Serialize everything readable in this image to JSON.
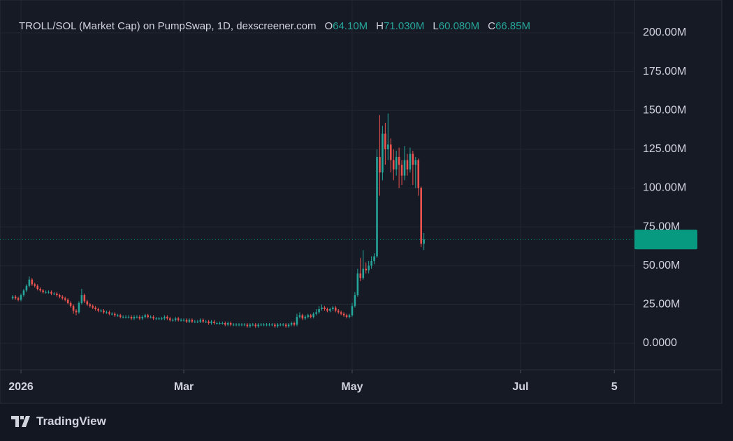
{
  "chart_data": {
    "type": "candlestick",
    "title": "TROLL/SOL (Market Cap) on PumpSwap, 1D, dexscreener.com",
    "legend_keys": [
      "O",
      "H",
      "L",
      "C"
    ],
    "legend_values": [
      "64.10M",
      "71.030M",
      "60.080M",
      "66.85M"
    ],
    "brand": "TradingView",
    "up_color": "#26a69a",
    "down_color": "#ef5350",
    "last_price_color": "#089981",
    "grid": true,
    "x": [
      -3,
      -2,
      -1,
      0,
      1,
      2,
      3,
      4,
      5,
      6,
      7,
      8,
      9,
      10,
      11,
      12,
      13,
      14,
      15,
      16,
      17,
      18,
      19,
      20,
      21,
      22,
      23,
      24,
      25,
      26,
      27,
      28,
      29,
      30,
      31,
      32,
      33,
      34,
      35,
      36,
      37,
      38,
      39,
      40,
      41,
      42,
      43,
      44,
      45,
      46,
      47,
      48,
      49,
      50,
      51,
      52,
      53,
      54,
      55,
      56,
      57,
      58,
      59,
      60,
      61,
      62,
      63,
      64,
      65,
      66,
      67,
      68,
      69,
      70,
      71,
      72,
      73,
      74,
      75,
      76,
      77,
      78,
      79,
      80,
      81,
      82,
      83,
      84,
      85,
      86,
      87,
      88,
      89,
      90,
      91,
      92,
      93,
      94,
      95,
      96,
      97,
      98,
      99,
      100,
      101,
      102,
      103,
      104,
      105,
      106,
      107,
      108,
      109,
      110,
      111,
      112,
      113,
      114,
      115,
      116,
      117,
      118,
      119,
      120,
      121,
      122,
      123,
      124,
      125,
      126,
      127,
      128,
      129,
      130,
      131,
      132,
      133,
      134,
      135,
      136,
      137,
      138,
      139,
      140,
      141,
      142,
      143,
      144,
      145,
      146
    ],
    "open": [
      29,
      30,
      29,
      28,
      31,
      34,
      37,
      41,
      38,
      37,
      35,
      34,
      33,
      33,
      33,
      32,
      32,
      31,
      30,
      29,
      28,
      26,
      24,
      21,
      20,
      26,
      31,
      27,
      25,
      24,
      23,
      22,
      21,
      21,
      20,
      20,
      19,
      19,
      18,
      18,
      17,
      17,
      17,
      17,
      16,
      17,
      17,
      16,
      17,
      18,
      17,
      17,
      16,
      16,
      16,
      16,
      17,
      16,
      15,
      15,
      16,
      15,
      15,
      15,
      14,
      15,
      14,
      14,
      14,
      15,
      14,
      14,
      13,
      14,
      13,
      13,
      13,
      13,
      12,
      13,
      12,
      12,
      12,
      12,
      12,
      12,
      11,
      12,
      12,
      11,
      12,
      12,
      12,
      12,
      12,
      12,
      11,
      12,
      12,
      12,
      11,
      12,
      13,
      12,
      17,
      18,
      16,
      17,
      18,
      17,
      19,
      20,
      22,
      23,
      22,
      21,
      22,
      23,
      21,
      20,
      19,
      18,
      17,
      18,
      24,
      31,
      45,
      42,
      48,
      47,
      50,
      53,
      56,
      120,
      110,
      135,
      125,
      128,
      118,
      112,
      120,
      115,
      108,
      118,
      112,
      122,
      115,
      118,
      100,
      64.1
    ],
    "high": [
      31,
      31,
      30,
      32,
      35,
      38,
      43,
      42,
      39,
      38,
      36,
      35,
      34,
      34,
      34,
      33,
      33,
      32,
      31,
      30,
      29,
      27,
      25,
      22,
      27,
      35,
      32,
      28,
      26,
      25,
      24,
      23,
      22,
      22,
      21,
      21,
      20,
      20,
      19,
      19,
      18,
      18,
      18,
      18,
      18,
      18,
      18,
      18,
      19,
      19,
      18,
      18,
      17,
      17,
      17,
      18,
      18,
      17,
      16,
      17,
      17,
      16,
      16,
      16,
      16,
      16,
      15,
      15,
      16,
      16,
      15,
      15,
      15,
      15,
      14,
      14,
      14,
      14,
      14,
      14,
      13,
      13,
      13,
      13,
      13,
      13,
      13,
      13,
      13,
      13,
      13,
      13,
      13,
      13,
      13,
      13,
      13,
      13,
      13,
      13,
      13,
      14,
      14,
      19,
      20,
      19,
      18,
      19,
      19,
      20,
      22,
      24,
      25,
      24,
      23,
      23,
      24,
      24,
      22,
      21,
      20,
      19,
      19,
      26,
      33,
      48,
      55,
      60,
      52,
      53,
      56,
      58,
      125,
      147,
      140,
      142,
      148,
      132,
      125,
      124,
      126,
      118,
      127,
      122,
      126,
      124,
      120,
      119,
      101,
      71.03
    ],
    "low": [
      28,
      28,
      27,
      27,
      30,
      33,
      36,
      37,
      36,
      34,
      33,
      32,
      32,
      32,
      31,
      31,
      30,
      29,
      28,
      27,
      25,
      23,
      19,
      18,
      19,
      25,
      26,
      24,
      23,
      22,
      21,
      20,
      20,
      19,
      19,
      18,
      18,
      17,
      17,
      16,
      16,
      16,
      16,
      15,
      15,
      16,
      15,
      15,
      16,
      16,
      16,
      15,
      15,
      15,
      15,
      15,
      15,
      14,
      14,
      14,
      14,
      14,
      14,
      13,
      13,
      13,
      13,
      13,
      13,
      13,
      13,
      12,
      12,
      12,
      12,
      12,
      12,
      11,
      11,
      11,
      11,
      11,
      11,
      11,
      11,
      10,
      10,
      11,
      10,
      10,
      11,
      11,
      11,
      11,
      11,
      10,
      10,
      11,
      11,
      10,
      10,
      11,
      11,
      11,
      16,
      15,
      15,
      16,
      16,
      16,
      18,
      19,
      21,
      21,
      20,
      20,
      21,
      20,
      19,
      18,
      17,
      16,
      16,
      17,
      23,
      30,
      40,
      41,
      45,
      45,
      48,
      51,
      55,
      95,
      105,
      115,
      118,
      110,
      105,
      108,
      100,
      102,
      105,
      108,
      110,
      102,
      100,
      95,
      62,
      60.08
    ],
    "close": [
      30,
      29,
      28,
      31,
      34,
      37,
      41,
      38,
      37,
      35,
      34,
      33,
      33,
      33,
      32,
      32,
      31,
      30,
      29,
      28,
      26,
      24,
      21,
      20,
      26,
      31,
      27,
      25,
      24,
      23,
      22,
      21,
      21,
      20,
      20,
      19,
      19,
      18,
      18,
      17,
      17,
      17,
      17,
      16,
      17,
      17,
      16,
      17,
      18,
      17,
      17,
      16,
      16,
      16,
      16,
      17,
      16,
      15,
      15,
      16,
      15,
      15,
      15,
      14,
      15,
      14,
      14,
      14,
      15,
      14,
      14,
      13,
      14,
      13,
      13,
      13,
      13,
      12,
      13,
      12,
      12,
      12,
      12,
      12,
      12,
      11,
      12,
      12,
      11,
      12,
      12,
      12,
      12,
      12,
      12,
      11,
      12,
      12,
      12,
      11,
      12,
      13,
      12,
      17,
      18,
      16,
      17,
      18,
      17,
      19,
      20,
      22,
      23,
      22,
      21,
      22,
      23,
      21,
      20,
      19,
      18,
      17,
      18,
      24,
      31,
      45,
      42,
      48,
      47,
      50,
      53,
      56,
      120,
      110,
      135,
      125,
      128,
      118,
      112,
      120,
      115,
      108,
      118,
      112,
      122,
      115,
      118,
      100,
      64.1,
      66.85
    ],
    "xlim": [
      -7.6,
      222.3
    ],
    "xticks": [
      {
        "value": 0,
        "label": "2026"
      },
      {
        "value": 59,
        "label": "Mar"
      },
      {
        "value": 120,
        "label": "May"
      },
      {
        "value": 181,
        "label": "Jul"
      },
      {
        "value": 215,
        "label": "5"
      }
    ],
    "ylim": [
      -17.1,
      221.1
    ],
    "yticks": [
      {
        "value": 0,
        "label": "0.0000"
      },
      {
        "value": 25,
        "label": "25.00M"
      },
      {
        "value": 50,
        "label": "50.00M"
      },
      {
        "value": 75,
        "label": "75.00M"
      },
      {
        "value": 100,
        "label": "100.00M"
      },
      {
        "value": 125,
        "label": "125.00M"
      },
      {
        "value": 150,
        "label": "150.00M"
      },
      {
        "value": 175,
        "label": "175.00M"
      },
      {
        "value": 200,
        "label": "200.00M"
      }
    ]
  }
}
